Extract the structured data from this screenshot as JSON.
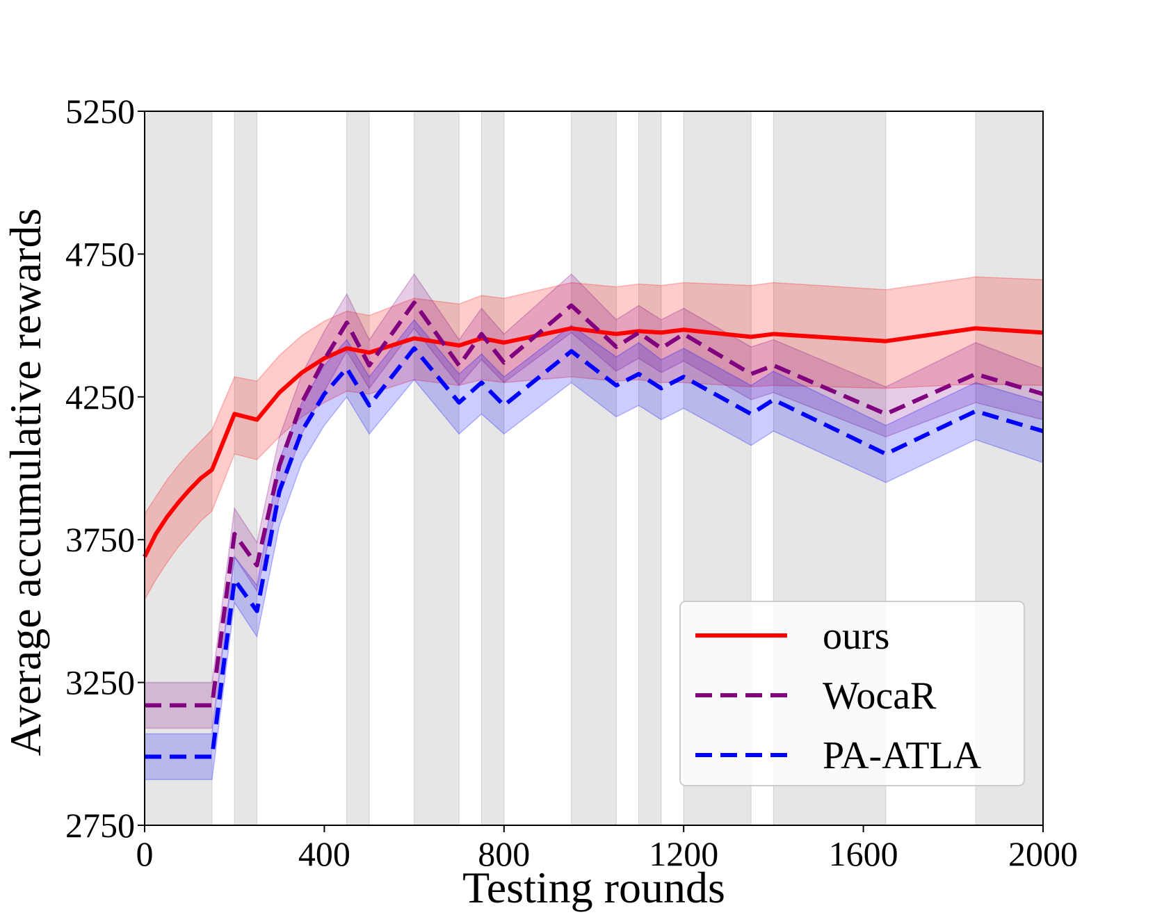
{
  "chart_data": {
    "type": "line",
    "title": "",
    "xlabel": "Testing rounds",
    "ylabel": "Average accumulative rewards",
    "xlim": [
      0,
      2000
    ],
    "ylim": [
      2750,
      5250
    ],
    "xticks": [
      0,
      400,
      800,
      1200,
      1600,
      2000
    ],
    "yticks": [
      2750,
      3250,
      3750,
      4250,
      4750,
      5250
    ],
    "grid": false,
    "legend_position": "bottom-right",
    "shaded_intervals": [
      [
        0,
        150
      ],
      [
        200,
        250
      ],
      [
        450,
        500
      ],
      [
        600,
        700
      ],
      [
        750,
        800
      ],
      [
        950,
        1050
      ],
      [
        1100,
        1150
      ],
      [
        1200,
        1350
      ],
      [
        1400,
        1650
      ],
      [
        1850,
        2000
      ]
    ],
    "series": [
      {
        "name": "ours",
        "color": "#ff0000",
        "style": "solid",
        "x": [
          0,
          25,
          50,
          75,
          100,
          125,
          150,
          200,
          250,
          300,
          350,
          400,
          450,
          500,
          600,
          700,
          750,
          800,
          950,
          1050,
          1100,
          1150,
          1200,
          1350,
          1400,
          1650,
          1850,
          2000
        ],
        "y": [
          3690,
          3770,
          3830,
          3880,
          3925,
          3965,
          3995,
          4190,
          4170,
          4265,
          4335,
          4385,
          4420,
          4405,
          4455,
          4430,
          4455,
          4440,
          4490,
          4470,
          4480,
          4475,
          4485,
          4460,
          4470,
          4445,
          4490,
          4475
        ],
        "lower": [
          3540,
          3610,
          3670,
          3725,
          3770,
          3815,
          3850,
          4050,
          4030,
          4110,
          4180,
          4230,
          4270,
          4260,
          4310,
          4290,
          4310,
          4300,
          4320,
          4305,
          4310,
          4300,
          4300,
          4285,
          4290,
          4280,
          4295,
          4290
        ],
        "upper": [
          3840,
          3900,
          3960,
          4010,
          4055,
          4095,
          4135,
          4320,
          4305,
          4395,
          4465,
          4515,
          4550,
          4535,
          4595,
          4575,
          4605,
          4595,
          4650,
          4635,
          4645,
          4640,
          4650,
          4640,
          4650,
          4625,
          4670,
          4660
        ]
      },
      {
        "name": "WocaR",
        "color": "#800080",
        "style": "dashed",
        "x": [
          0,
          150,
          200,
          250,
          300,
          350,
          400,
          450,
          500,
          600,
          700,
          750,
          800,
          950,
          1050,
          1100,
          1150,
          1200,
          1350,
          1400,
          1650,
          1850,
          2000
        ],
        "y": [
          3170,
          3170,
          3770,
          3660,
          4010,
          4230,
          4380,
          4510,
          4360,
          4580,
          4360,
          4470,
          4370,
          4570,
          4425,
          4475,
          4420,
          4470,
          4330,
          4360,
          4190,
          4330,
          4260
        ],
        "lower": [
          3090,
          3090,
          3690,
          3570,
          3900,
          4120,
          4270,
          4410,
          4280,
          4490,
          4290,
          4380,
          4300,
          4475,
          4340,
          4385,
          4335,
          4375,
          4240,
          4265,
          4110,
          4230,
          4170
        ],
        "upper": [
          3250,
          3250,
          3860,
          3740,
          4110,
          4330,
          4480,
          4610,
          4450,
          4680,
          4450,
          4560,
          4470,
          4680,
          4520,
          4570,
          4520,
          4560,
          4425,
          4450,
          4285,
          4440,
          4350
        ]
      },
      {
        "name": "PA-ATLA",
        "color": "#0000ff",
        "style": "dashed",
        "x": [
          0,
          150,
          200,
          250,
          300,
          350,
          400,
          450,
          500,
          600,
          700,
          750,
          800,
          950,
          1050,
          1100,
          1150,
          1200,
          1350,
          1400,
          1650,
          1850,
          2000
        ],
        "y": [
          2990,
          2990,
          3610,
          3500,
          3920,
          4130,
          4260,
          4350,
          4220,
          4420,
          4230,
          4300,
          4220,
          4410,
          4290,
          4330,
          4280,
          4320,
          4190,
          4240,
          4050,
          4200,
          4130
        ],
        "lower": [
          2910,
          2910,
          3530,
          3410,
          3800,
          4020,
          4150,
          4250,
          4120,
          4310,
          4120,
          4190,
          4120,
          4300,
          4180,
          4220,
          4170,
          4210,
          4080,
          4130,
          3950,
          4100,
          4020
        ],
        "upper": [
          3070,
          3070,
          3690,
          3590,
          4030,
          4230,
          4360,
          4450,
          4320,
          4520,
          4330,
          4400,
          4320,
          4500,
          4390,
          4440,
          4380,
          4420,
          4290,
          4340,
          4150,
          4300,
          4230
        ]
      }
    ]
  }
}
